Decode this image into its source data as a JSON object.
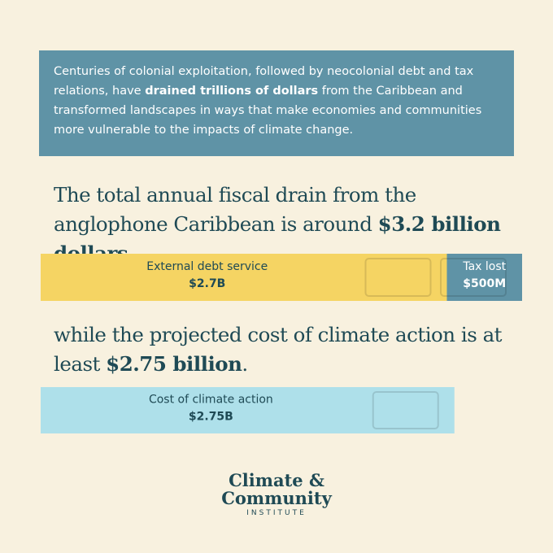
{
  "intro": {
    "before": "Centuries of colonial exploitation, followed by neocolonial debt and tax relations, have ",
    "bold": "drained trillions of dollars",
    "after": " from the Caribbean and transformed landscapes in ways that make economies and communities more vulnerable to the impacts of climate change."
  },
  "headline1": {
    "before": "The total annual fiscal drain from the anglophone Caribbean is around ",
    "bold": "$3.2 billion dollars",
    "after": ","
  },
  "bars1": [
    {
      "label": "External debt service",
      "value": 2.7,
      "value_label": "$2.7B",
      "color": "#f5d463"
    },
    {
      "label": "Tax lost",
      "value": 0.5,
      "value_label": "$500M",
      "color": "#5f93a6"
    }
  ],
  "headline2": {
    "before": "while the projected cost of climate action is at least ",
    "bold": "$2.75 billion",
    "after": "."
  },
  "bars2": [
    {
      "label": "Cost of climate action",
      "value": 2.75,
      "value_label": "$2.75B",
      "color": "#aee0ea"
    }
  ],
  "logo": {
    "line1": "Climate &",
    "line2": "Community",
    "line3": "INSTITUTE"
  }
}
